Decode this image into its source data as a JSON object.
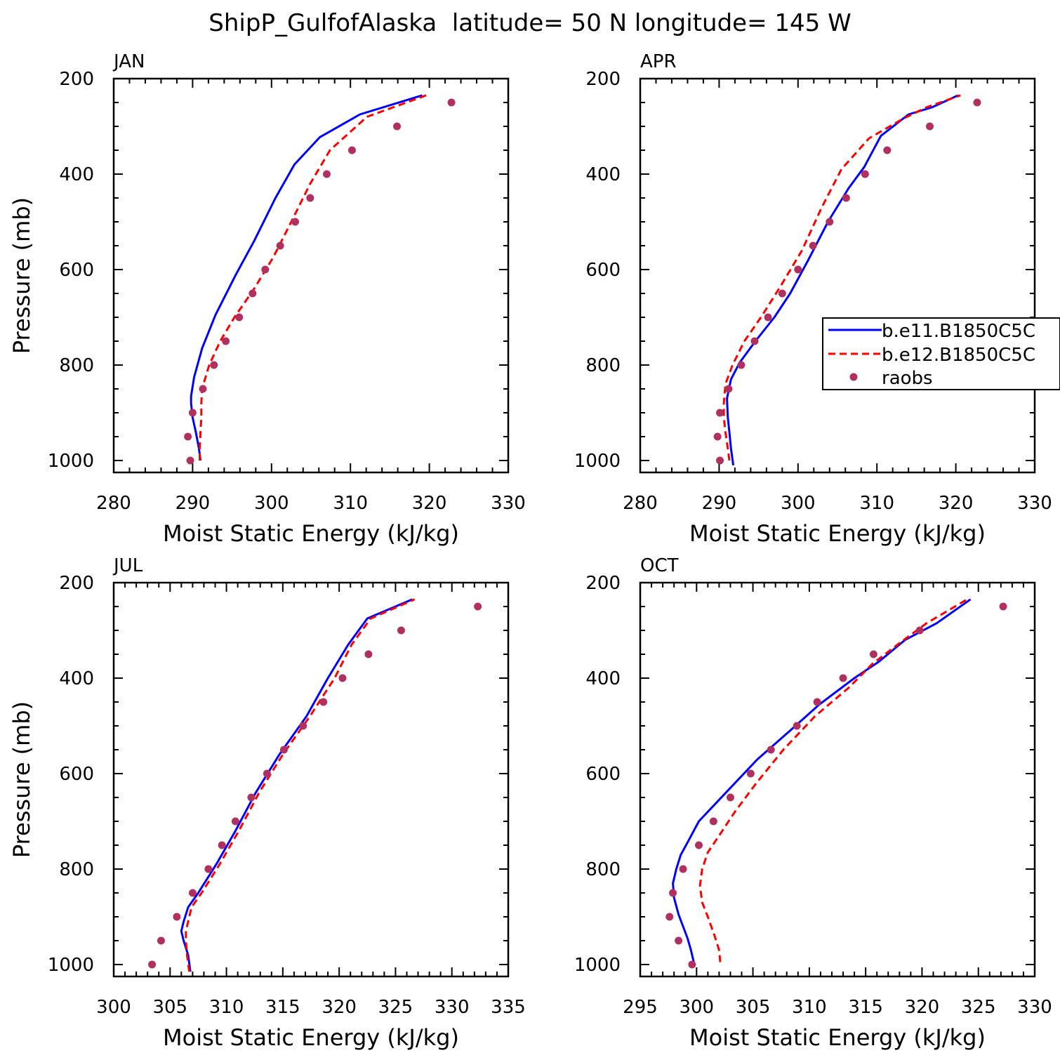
{
  "figure": {
    "title": "ShipP_GulfofAlaska  latitude= 50 N longitude= 145 W"
  },
  "legend": {
    "entries": [
      "b.e11.B1850C5C",
      "b.e12.B1850C5C",
      "raobs"
    ]
  },
  "colors": {
    "b.e11.B1850C5C": "#0000ff",
    "b.e12.B1850C5C": "#ff0000",
    "raobs": "#b03060"
  },
  "chart_data": [
    {
      "type": "line",
      "panel_label": "JAN",
      "xlabel": "Moist Static Energy (kJ/kg)",
      "ylabel": "Pressure (mb)",
      "xlim": [
        280,
        330
      ],
      "ylim": [
        1025,
        200
      ],
      "xticks": [
        280,
        290,
        300,
        310,
        320,
        330
      ],
      "yticks": [
        200,
        400,
        600,
        800,
        1000
      ],
      "grid": false,
      "legend": false,
      "series": [
        {
          "name": "b.e11.B1850C5C",
          "style": "solid",
          "color": "#0000ff",
          "points": [
            [
              291.0,
              1000
            ],
            [
              290.8,
              975
            ],
            [
              290.4,
              940
            ],
            [
              290.0,
              910
            ],
            [
              289.8,
              880
            ],
            [
              289.8,
              865
            ],
            [
              290.2,
              825
            ],
            [
              291.2,
              765
            ],
            [
              292.9,
              695
            ],
            [
              295.5,
              610
            ],
            [
              297.8,
              540
            ],
            [
              300.5,
              450
            ],
            [
              302.9,
              380
            ],
            [
              306.1,
              323
            ],
            [
              311.2,
              275
            ],
            [
              319.1,
              235
            ]
          ]
        },
        {
          "name": "b.e12.B1850C5C",
          "style": "dashed",
          "color": "#ff0000",
          "points": [
            [
              290.9,
              1000
            ],
            [
              290.9,
              975
            ],
            [
              291.0,
              940
            ],
            [
              291.1,
              910
            ],
            [
              291.1,
              880
            ],
            [
              291.2,
              850
            ],
            [
              292.1,
              800
            ],
            [
              293.5,
              750
            ],
            [
              295.3,
              700
            ],
            [
              297.8,
              640
            ],
            [
              300.2,
              575
            ],
            [
              302.5,
              500
            ],
            [
              304.9,
              420
            ],
            [
              307.4,
              350
            ],
            [
              312.1,
              280
            ],
            [
              319.6,
              235
            ]
          ]
        },
        {
          "name": "raobs",
          "style": "markers",
          "color": "#b03060",
          "points": [
            [
              289.7,
              1000
            ],
            [
              289.4,
              950
            ],
            [
              290.0,
              900
            ],
            [
              291.3,
              850
            ],
            [
              292.7,
              800
            ],
            [
              294.2,
              750
            ],
            [
              295.9,
              700
            ],
            [
              297.6,
              650
            ],
            [
              299.2,
              600
            ],
            [
              301.1,
              550
            ],
            [
              303.0,
              500
            ],
            [
              304.9,
              450
            ],
            [
              307.0,
              400
            ],
            [
              310.2,
              350
            ],
            [
              315.9,
              300
            ],
            [
              322.8,
              250
            ]
          ]
        }
      ]
    },
    {
      "type": "line",
      "panel_label": "APR",
      "xlabel": "Moist Static Energy (kJ/kg)",
      "ylabel": "",
      "xlim": [
        280,
        330
      ],
      "ylim": [
        1025,
        200
      ],
      "xticks": [
        280,
        290,
        300,
        310,
        320,
        330
      ],
      "yticks": [
        200,
        400,
        600,
        800,
        1000
      ],
      "grid": false,
      "legend": true,
      "series": [
        {
          "name": "b.e11.B1850C5C",
          "style": "solid",
          "color": "#0000ff",
          "points": [
            [
              291.8,
              1010
            ],
            [
              291.5,
              975
            ],
            [
              291.3,
              940
            ],
            [
              291.1,
              910
            ],
            [
              291.0,
              870
            ],
            [
              291.5,
              830
            ],
            [
              292.6,
              795
            ],
            [
              294.6,
              750
            ],
            [
              297.0,
              700
            ],
            [
              299.0,
              650
            ],
            [
              301.3,
              580
            ],
            [
              303.8,
              500
            ],
            [
              306.4,
              430
            ],
            [
              308.4,
              385
            ],
            [
              310.5,
              320
            ],
            [
              314.0,
              275
            ],
            [
              317.0,
              260
            ],
            [
              320.3,
              235
            ]
          ]
        },
        {
          "name": "b.e12.B1850C5C",
          "style": "dashed",
          "color": "#ff0000",
          "points": [
            [
              291.3,
              1000
            ],
            [
              291.1,
              975
            ],
            [
              290.8,
              940
            ],
            [
              290.6,
              910
            ],
            [
              290.6,
              880
            ],
            [
              290.8,
              840
            ],
            [
              291.7,
              800
            ],
            [
              293.2,
              750
            ],
            [
              295.3,
              700
            ],
            [
              297.6,
              640
            ],
            [
              300.5,
              560
            ],
            [
              303.0,
              470
            ],
            [
              305.5,
              390
            ],
            [
              309.0,
              325
            ],
            [
              313.2,
              285
            ],
            [
              316.3,
              260
            ],
            [
              320.6,
              235
            ]
          ]
        },
        {
          "name": "raobs",
          "style": "markers",
          "color": "#b03060",
          "points": [
            [
              290.1,
              1000
            ],
            [
              289.8,
              950
            ],
            [
              290.1,
              900
            ],
            [
              291.2,
              850
            ],
            [
              292.8,
              800
            ],
            [
              294.5,
              750
            ],
            [
              296.2,
              700
            ],
            [
              298.0,
              650
            ],
            [
              300.0,
              600
            ],
            [
              301.9,
              550
            ],
            [
              304.0,
              500
            ],
            [
              306.1,
              450
            ],
            [
              308.5,
              400
            ],
            [
              311.3,
              350
            ],
            [
              316.7,
              300
            ],
            [
              322.7,
              250
            ]
          ]
        }
      ]
    },
    {
      "type": "line",
      "panel_label": "JUL",
      "xlabel": "Moist Static Energy (kJ/kg)",
      "ylabel": "Pressure (mb)",
      "xlim": [
        300,
        335
      ],
      "ylim": [
        1025,
        200
      ],
      "xticks": [
        300,
        305,
        310,
        315,
        320,
        325,
        330,
        335
      ],
      "yticks": [
        200,
        400,
        600,
        800,
        1000
      ],
      "grid": false,
      "legend": false,
      "series": [
        {
          "name": "b.e11.B1850C5C",
          "style": "solid",
          "color": "#0000ff",
          "points": [
            [
              306.8,
              1015
            ],
            [
              306.6,
              980
            ],
            [
              306.2,
              950
            ],
            [
              306.0,
              930
            ],
            [
              306.2,
              910
            ],
            [
              306.6,
              880
            ],
            [
              307.5,
              850
            ],
            [
              309.1,
              790
            ],
            [
              310.8,
              720
            ],
            [
              312.6,
              640
            ],
            [
              314.7,
              560
            ],
            [
              317.1,
              480
            ],
            [
              319.0,
              400
            ],
            [
              320.8,
              330
            ],
            [
              322.5,
              275
            ],
            [
              326.5,
              235
            ]
          ]
        },
        {
          "name": "b.e12.B1850C5C",
          "style": "dashed",
          "color": "#ff0000",
          "points": [
            [
              306.7,
              1015
            ],
            [
              306.5,
              980
            ],
            [
              306.4,
              950
            ],
            [
              306.4,
              930
            ],
            [
              306.6,
              910
            ],
            [
              306.9,
              880
            ],
            [
              307.8,
              850
            ],
            [
              309.4,
              790
            ],
            [
              311.1,
              720
            ],
            [
              312.9,
              640
            ],
            [
              315.0,
              560
            ],
            [
              317.4,
              480
            ],
            [
              319.6,
              400
            ],
            [
              321.1,
              330
            ],
            [
              322.8,
              275
            ],
            [
              326.7,
              235
            ]
          ]
        },
        {
          "name": "raobs",
          "style": "markers",
          "color": "#b03060",
          "points": [
            [
              303.4,
              1000
            ],
            [
              304.2,
              950
            ],
            [
              305.6,
              900
            ],
            [
              307.0,
              850
            ],
            [
              308.4,
              800
            ],
            [
              309.6,
              750
            ],
            [
              310.8,
              700
            ],
            [
              312.2,
              650
            ],
            [
              313.6,
              600
            ],
            [
              315.1,
              550
            ],
            [
              316.8,
              500
            ],
            [
              318.6,
              450
            ],
            [
              320.3,
              400
            ],
            [
              322.6,
              350
            ],
            [
              325.5,
              300
            ],
            [
              332.3,
              250
            ]
          ]
        }
      ]
    },
    {
      "type": "line",
      "panel_label": "OCT",
      "xlabel": "Moist Static Energy (kJ/kg)",
      "ylabel": "",
      "xlim": [
        295,
        330
      ],
      "ylim": [
        1025,
        200
      ],
      "xticks": [
        295,
        300,
        305,
        310,
        315,
        320,
        325,
        330
      ],
      "yticks": [
        200,
        400,
        600,
        800,
        1000
      ],
      "grid": false,
      "legend": false,
      "series": [
        {
          "name": "b.e11.B1850C5C",
          "style": "solid",
          "color": "#0000ff",
          "points": [
            [
              299.8,
              1000
            ],
            [
              299.5,
              970
            ],
            [
              299.2,
              945
            ],
            [
              298.8,
              920
            ],
            [
              298.4,
              895
            ],
            [
              298.0,
              860
            ],
            [
              297.9,
              830
            ],
            [
              298.2,
              800
            ],
            [
              298.6,
              770
            ],
            [
              299.3,
              740
            ],
            [
              300.2,
              700
            ],
            [
              302.6,
              640
            ],
            [
              305.4,
              570
            ],
            [
              308.3,
              510
            ],
            [
              310.9,
              455
            ],
            [
              314.0,
              400
            ],
            [
              316.2,
              365
            ],
            [
              318.5,
              320
            ],
            [
              321.3,
              285
            ],
            [
              324.3,
              235
            ]
          ]
        },
        {
          "name": "b.e12.B1850C5C",
          "style": "dashed",
          "color": "#ff0000",
          "points": [
            [
              302.1,
              995
            ],
            [
              302.0,
              970
            ],
            [
              301.6,
              940
            ],
            [
              301.0,
              900
            ],
            [
              300.5,
              870
            ],
            [
              300.3,
              835
            ],
            [
              300.5,
              800
            ],
            [
              301.0,
              765
            ],
            [
              302.0,
              730
            ],
            [
              303.4,
              680
            ],
            [
              305.3,
              620
            ],
            [
              307.7,
              550
            ],
            [
              310.5,
              480
            ],
            [
              313.5,
              420
            ],
            [
              315.6,
              370
            ],
            [
              318.1,
              325
            ],
            [
              320.4,
              285
            ],
            [
              324.0,
              235
            ]
          ]
        },
        {
          "name": "raobs",
          "style": "markers",
          "color": "#b03060",
          "points": [
            [
              299.6,
              1000
            ],
            [
              298.4,
              950
            ],
            [
              297.6,
              900
            ],
            [
              297.9,
              850
            ],
            [
              298.8,
              800
            ],
            [
              300.2,
              750
            ],
            [
              301.5,
              700
            ],
            [
              303.0,
              650
            ],
            [
              304.8,
              600
            ],
            [
              306.6,
              550
            ],
            [
              308.9,
              500
            ],
            [
              310.7,
              450
            ],
            [
              313.0,
              400
            ],
            [
              315.7,
              350
            ],
            [
              319.8,
              300
            ],
            [
              327.2,
              250
            ]
          ]
        }
      ]
    }
  ]
}
